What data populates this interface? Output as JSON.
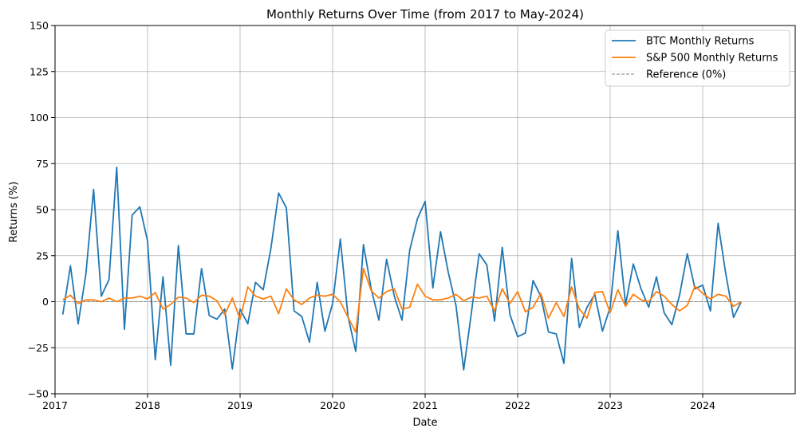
{
  "chart_data": {
    "type": "line",
    "title": "Monthly Returns Over Time (from 2017 to May-2024)",
    "xlabel": "Date",
    "ylabel": "Returns (%)",
    "xlim": [
      "2017-01-01",
      "2025-01-01"
    ],
    "ylim": [
      -50,
      150
    ],
    "grid": true,
    "legend_position": "top-right",
    "x_ticks": [
      "2017",
      "2018",
      "2019",
      "2020",
      "2021",
      "2022",
      "2023",
      "2024"
    ],
    "y_ticks": [
      "150",
      "125",
      "100",
      "75",
      "50",
      "25",
      "0",
      "−25",
      "−50"
    ],
    "start_month": "2017-02",
    "series": [
      {
        "name": "BTC Monthly Returns",
        "color": "#1f77b4",
        "values": [
          -7,
          19.5,
          -12,
          15,
          61,
          3,
          12,
          73,
          -15,
          47,
          51.5,
          33,
          -31.5,
          13.5,
          -34.5,
          30.5,
          -17.5,
          -17.5,
          18,
          -7.5,
          -9.5,
          -4,
          -36.5,
          -4,
          -12,
          10.5,
          6.5,
          29,
          59,
          51,
          -5,
          -8,
          -22,
          10.5,
          -16,
          -1,
          34,
          -8,
          -27,
          31,
          7,
          -10,
          23,
          3,
          -10,
          28,
          45,
          54.5,
          7.5,
          38,
          16,
          -2,
          -37,
          -6,
          26,
          20,
          -10.5,
          29.5,
          -7,
          -19,
          -17,
          11.5,
          3,
          -16.5,
          -17.5,
          -33.5,
          23.5,
          -14,
          -3,
          4,
          -16,
          -3,
          38.5,
          -1.5,
          20.5,
          7,
          -3,
          13.5,
          -6,
          -12.5,
          3.5,
          26,
          7,
          9,
          -5,
          42.5,
          15,
          -8.5,
          0
        ]
      },
      {
        "name": "S&P 500 Monthly Returns",
        "color": "#ff7f0e",
        "values": [
          1,
          3.5,
          -1,
          1,
          1,
          0,
          2,
          0,
          2,
          2,
          3,
          1.5,
          5,
          -4,
          -1.5,
          2.5,
          2,
          -0.5,
          3.5,
          3,
          0.5,
          -7,
          2,
          -9.5,
          8,
          3,
          1.5,
          3,
          -6.5,
          7,
          1,
          -1.5,
          2,
          3.5,
          3,
          4,
          0,
          -8.5,
          -16.5,
          18,
          6,
          2,
          5.5,
          7,
          -4,
          -3,
          9.5,
          3,
          1,
          1,
          2,
          4,
          0.5,
          2.5,
          2,
          3,
          -5,
          7,
          -1,
          5.5,
          -5.5,
          -3,
          4.5,
          -9,
          -0.5,
          -8,
          8,
          -4,
          -9,
          5,
          5.5,
          -6,
          6.5,
          -2.5,
          4,
          1,
          0,
          5.5,
          3,
          -1.5,
          -5,
          -2,
          8.5,
          4.5,
          1.5,
          4,
          3,
          -2.5,
          0
        ]
      },
      {
        "name": "Reference (0%)",
        "color": "#808080",
        "dashed": true,
        "values": [
          0,
          0
        ]
      }
    ]
  }
}
